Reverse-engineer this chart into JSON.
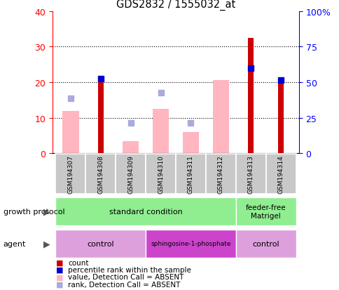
{
  "title": "GDS2832 / 1555032_at",
  "samples": [
    "GSM194307",
    "GSM194308",
    "GSM194309",
    "GSM194310",
    "GSM194311",
    "GSM194312",
    "GSM194313",
    "GSM194314"
  ],
  "count_values": [
    0,
    21,
    0,
    0,
    0,
    0,
    32.5,
    20.5
  ],
  "percentile_values": [
    0,
    21,
    0,
    0,
    0,
    0,
    24,
    20.5
  ],
  "value_absent": [
    12,
    0,
    3.5,
    12.5,
    6,
    20.5,
    0,
    0
  ],
  "rank_absent": [
    15.5,
    0,
    8.5,
    17,
    8.5,
    0,
    0,
    0
  ],
  "left_ylim": [
    0,
    40
  ],
  "right_ylim": [
    0,
    100
  ],
  "left_yticks": [
    0,
    10,
    20,
    30,
    40
  ],
  "right_yticks": [
    0,
    25,
    50,
    75,
    100
  ],
  "right_yticklabels": [
    "0",
    "25",
    "50",
    "75",
    "100%"
  ],
  "count_color": "#CC0000",
  "percentile_color": "#0000CC",
  "value_absent_color": "#FFB6C1",
  "rank_absent_color": "#AAAADD",
  "bg_color": "#FFFFFF",
  "growth_std_color": "#90EE90",
  "growth_ff_color": "#90EE90",
  "agent_ctrl_color": "#DDA0DD",
  "agent_sph_color": "#CC44CC",
  "sample_box_color": "#C8C8C8",
  "legend_items": [
    {
      "color": "#CC0000",
      "label": "count",
      "marker": "s"
    },
    {
      "color": "#0000CC",
      "label": "percentile rank within the sample",
      "marker": "s"
    },
    {
      "color": "#FFB6C1",
      "label": "value, Detection Call = ABSENT",
      "marker": "s"
    },
    {
      "color": "#AAAADD",
      "label": "rank, Detection Call = ABSENT",
      "marker": "s"
    }
  ]
}
